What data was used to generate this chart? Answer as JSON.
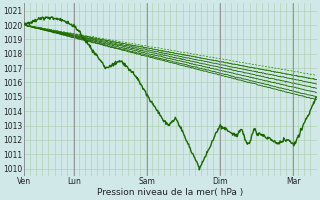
{
  "xlabel": "Pression niveau de la mer( hPa )",
  "bg_color": "#d0e8e8",
  "plot_bg_color": "#d0e8e8",
  "grid_color": "#aaccaa",
  "line_color_dark": "#1a6600",
  "line_color_med": "#2d8800",
  "yticks": [
    1010,
    1011,
    1012,
    1013,
    1014,
    1015,
    1016,
    1017,
    1018,
    1019,
    1020,
    1021
  ],
  "ylim": [
    1009.5,
    1021.5
  ],
  "xtick_positions": [
    0.0,
    0.17,
    0.42,
    0.67,
    0.92
  ],
  "xtick_labels": [
    "Ven",
    "Lun",
    "Sam",
    "Dim",
    "Mar"
  ],
  "vline_positions": [
    0.0,
    0.17,
    0.42,
    0.67,
    0.92
  ]
}
